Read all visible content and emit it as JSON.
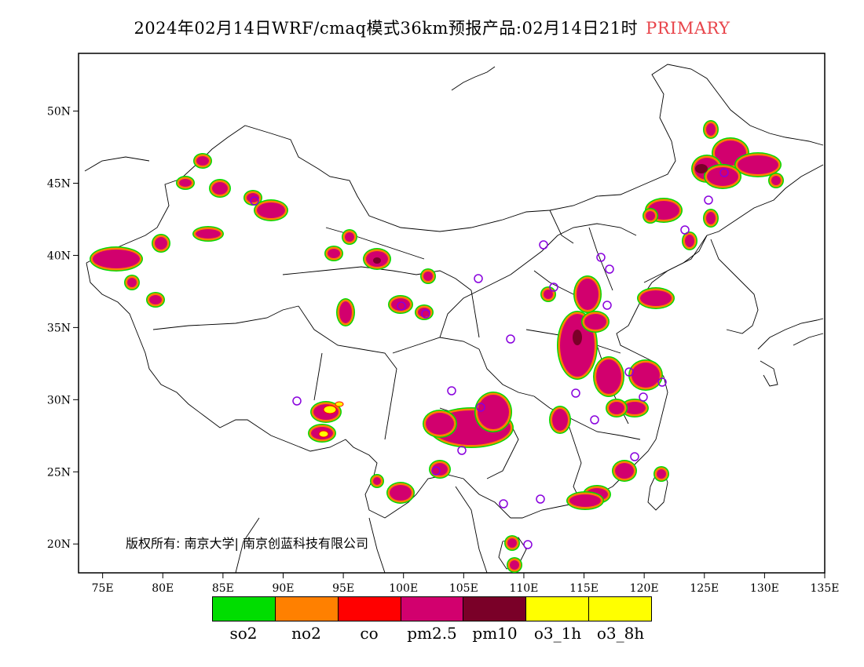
{
  "header": {
    "title": "2024年02月14日WRF/cmaq模式36km预报产品:02月14日21时",
    "tag": "PRIMARY",
    "tag_color": "#e8444a"
  },
  "map": {
    "lon_range": [
      73,
      135
    ],
    "lat_range": [
      18,
      54
    ],
    "lon_ticks": [
      "75E",
      "80E",
      "85E",
      "90E",
      "95E",
      "100E",
      "105E",
      "110E",
      "115E",
      "120E",
      "125E",
      "130E",
      "135E"
    ],
    "lat_ticks": [
      "20N",
      "25N",
      "30N",
      "35N",
      "40N",
      "45N",
      "50N"
    ],
    "copyright": "版权所有: 南京大学| 南京创蓝科技有限公司"
  },
  "legend": {
    "items": [
      {
        "label": "so2",
        "color": "#00dd00"
      },
      {
        "label": "no2",
        "color": "#ff8000"
      },
      {
        "label": "co",
        "color": "#ff0000"
      },
      {
        "label": "pm2.5",
        "color": "#d2006e"
      },
      {
        "label": "pm10",
        "color": "#7a0028"
      },
      {
        "label": "o3_1h",
        "color": "#ffff00"
      },
      {
        "label": "o3_8h",
        "color": "#ffff00"
      }
    ]
  }
}
